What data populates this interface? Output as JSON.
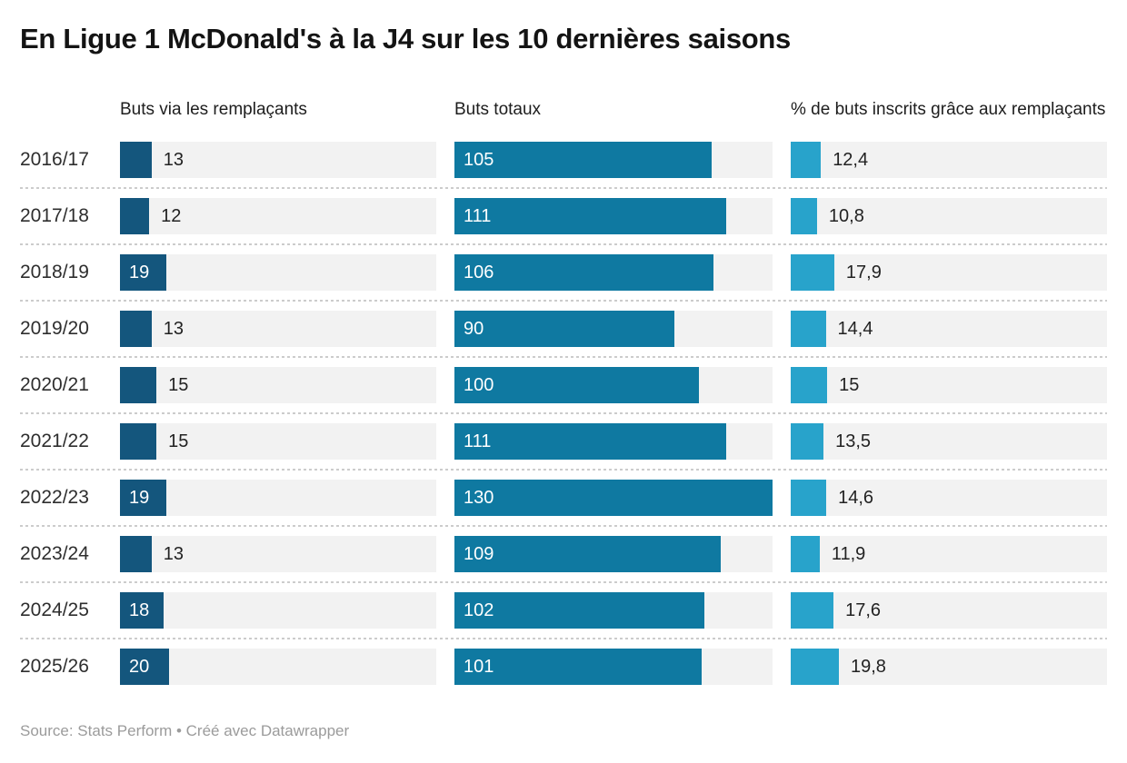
{
  "title": "En Ligue 1 McDonald's à la J4 sur les 10 dernières saisons",
  "footer": {
    "text": "Source: Stats Perform • Créé avec Datawrapper"
  },
  "colors": {
    "substitute_goals_bar": "#14567D",
    "total_goals_bar": "#0F79A1",
    "percent_bar": "#28A3CB",
    "bar_track": "#F2F2F2",
    "separator": "#CCCCCC"
  },
  "chart_data": {
    "type": "bar",
    "title": "En Ligue 1 McDonald's à la J4 sur les 10 dernières saisons",
    "orientation": "horizontal",
    "xlim": [
      0,
      130
    ],
    "scale_max": 130,
    "grid": false,
    "legend_position": "column-headers",
    "categories": [
      "2016/17",
      "2017/18",
      "2018/19",
      "2019/20",
      "2020/21",
      "2021/22",
      "2022/23",
      "2023/24",
      "2024/25",
      "2025/26"
    ],
    "series": [
      {
        "name": "Buts via les remplaçants",
        "values": [
          13,
          12,
          19,
          13,
          15,
          15,
          19,
          13,
          18,
          20
        ],
        "labels": [
          "13",
          "12",
          "19",
          "13",
          "15",
          "15",
          "19",
          "13",
          "18",
          "20"
        ],
        "color": "#14567D",
        "label_position": "auto"
      },
      {
        "name": "Buts totaux",
        "values": [
          105,
          111,
          106,
          90,
          100,
          111,
          130,
          109,
          102,
          101
        ],
        "labels": [
          "105",
          "111",
          "106",
          "90",
          "100",
          "111",
          "130",
          "109",
          "102",
          "101"
        ],
        "color": "#0F79A1",
        "label_position": "inside"
      },
      {
        "name": "% de buts inscrits grâce aux remplaçants",
        "values": [
          12.4,
          10.8,
          17.9,
          14.4,
          15,
          13.5,
          14.6,
          11.9,
          17.6,
          19.8
        ],
        "labels": [
          "12,4",
          "10,8",
          "17,9",
          "14,4",
          "15",
          "13,5",
          "14,6",
          "11,9",
          "17,6",
          "19,8"
        ],
        "color": "#28A3CB",
        "label_position": "outside"
      }
    ]
  }
}
